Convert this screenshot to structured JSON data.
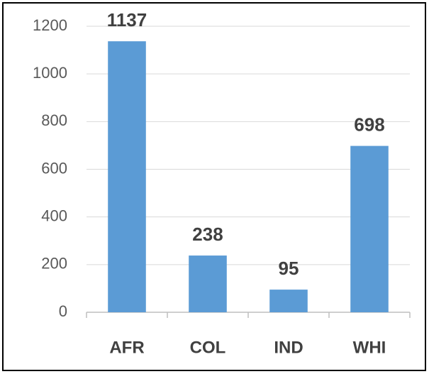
{
  "chart_data": {
    "type": "bar",
    "categories": [
      "AFR",
      "COL",
      "IND",
      "WHI"
    ],
    "values": [
      1137,
      238,
      95,
      698
    ],
    "color": "#5b9bd5",
    "ylim": [
      0,
      1200
    ],
    "yticks": [
      0,
      200,
      400,
      600,
      800,
      1000,
      1200
    ],
    "grid": true
  }
}
